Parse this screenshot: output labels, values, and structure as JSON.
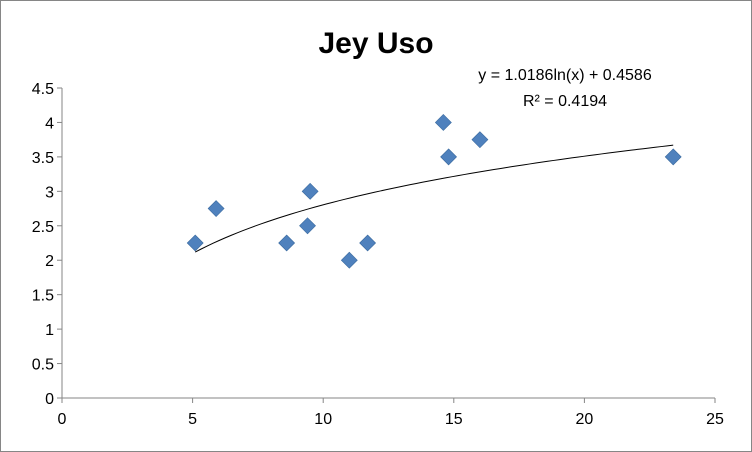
{
  "chart_data": {
    "type": "scatter",
    "title": "Jey Uso",
    "xlabel": "",
    "ylabel": "",
    "xlim": [
      0,
      25
    ],
    "ylim": [
      0,
      4.5
    ],
    "x_ticks": [
      0,
      5,
      10,
      15,
      20,
      25
    ],
    "y_ticks": [
      0,
      0.5,
      1,
      1.5,
      2,
      2.5,
      3,
      3.5,
      4,
      4.5
    ],
    "x_tick_labels": [
      "0",
      "5",
      "10",
      "15",
      "20",
      "25"
    ],
    "y_tick_labels": [
      "0",
      "0.5",
      "1",
      "1.5",
      "2",
      "2.5",
      "3",
      "3.5",
      "4",
      "4.5"
    ],
    "grid": false,
    "legend": "none",
    "marker": "diamond",
    "marker_color": "#4F81BD",
    "series": [
      {
        "x": [
          5.1,
          5.9,
          8.6,
          9.4,
          9.5,
          11.0,
          11.7,
          14.6,
          14.8,
          16.0,
          23.4
        ],
        "y": [
          2.25,
          2.75,
          2.25,
          2.5,
          3.0,
          2.0,
          2.25,
          4.0,
          3.5,
          3.75,
          3.5
        ]
      }
    ],
    "trendline": {
      "type": "logarithmic",
      "a": 1.0186,
      "b": 0.4586,
      "x_range": [
        5.1,
        23.4
      ],
      "color": "#000000",
      "equation": "y = 1.0186ln(x) + 0.4586",
      "r_squared": "R² = 0.4194"
    }
  }
}
